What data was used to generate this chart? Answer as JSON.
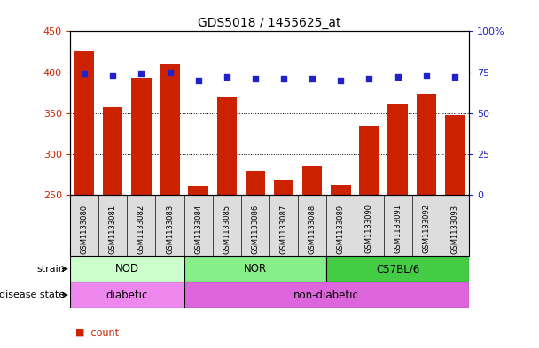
{
  "title": "GDS5018 / 1455625_at",
  "samples": [
    "GSM1133080",
    "GSM1133081",
    "GSM1133082",
    "GSM1133083",
    "GSM1133084",
    "GSM1133085",
    "GSM1133086",
    "GSM1133087",
    "GSM1133088",
    "GSM1133089",
    "GSM1133090",
    "GSM1133091",
    "GSM1133092",
    "GSM1133093"
  ],
  "counts": [
    425,
    357,
    393,
    410,
    261,
    370,
    279,
    268,
    285,
    262,
    335,
    362,
    373,
    347
  ],
  "percentiles": [
    74,
    73,
    74,
    75,
    70,
    72,
    71,
    71,
    71,
    70,
    71,
    72,
    73,
    72
  ],
  "ylim_left": [
    250,
    450
  ],
  "ylim_right": [
    0,
    100
  ],
  "yticks_left": [
    250,
    300,
    350,
    400,
    450
  ],
  "yticks_right": [
    0,
    25,
    50,
    75,
    100
  ],
  "strain_groups": [
    {
      "label": "NOD",
      "start": 0,
      "end": 3,
      "color": "#ccffcc"
    },
    {
      "label": "NOR",
      "start": 4,
      "end": 8,
      "color": "#88ee88"
    },
    {
      "label": "C57BL/6",
      "start": 9,
      "end": 13,
      "color": "#44cc44"
    }
  ],
  "disease_groups": [
    {
      "label": "diabetic",
      "start": 0,
      "end": 3,
      "color": "#ee88ee"
    },
    {
      "label": "non-diabetic",
      "start": 4,
      "end": 13,
      "color": "#dd66dd"
    }
  ],
  "bar_color": "#cc2200",
  "dot_color": "#2222cc",
  "grid_color": "#000000",
  "tick_color_left": "#cc2200",
  "tick_color_right": "#2222cc",
  "sample_box_color": "#dddddd",
  "legend_count_color": "#cc2200",
  "legend_dot_color": "#2222cc"
}
